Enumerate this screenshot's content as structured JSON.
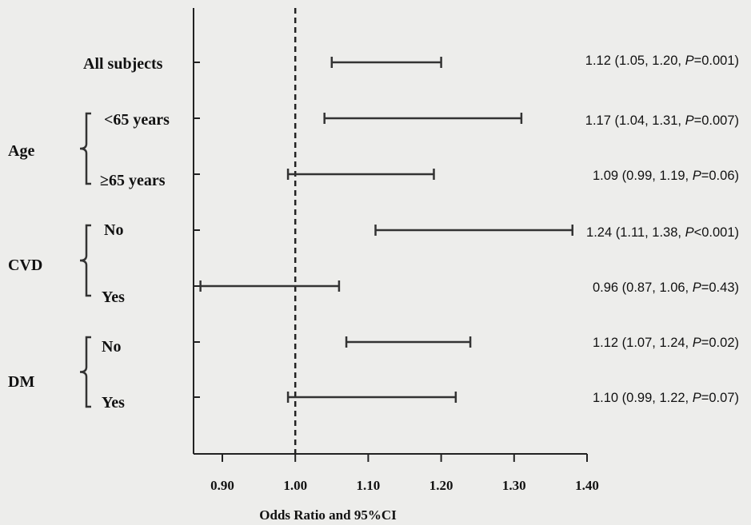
{
  "chart_data": {
    "type": "forest",
    "xlabel": "Odds Ratio and 95%CI",
    "xlim": [
      0.9,
      1.4
    ],
    "x_ticks": [
      "0.90",
      "1.00",
      "1.10",
      "1.20",
      "1.30",
      "1.40"
    ],
    "reference_line": 1.0,
    "rows": [
      {
        "label": "All subjects",
        "or": 1.12,
        "low": 1.05,
        "high": 1.2,
        "p_op": "=",
        "p": "0.001",
        "text_prefix": "1.12 (1.05, 1.20, ",
        "text_p": "P",
        "text_suffix": "=0.001)"
      },
      {
        "label": "<65 years",
        "or": 1.17,
        "low": 1.04,
        "high": 1.31,
        "p_op": "=",
        "p": "0.007",
        "text_prefix": "1.17 (1.04, 1.31, ",
        "text_p": "P",
        "text_suffix": "=0.007)"
      },
      {
        "label": "≥65 years",
        "or": 1.09,
        "low": 0.99,
        "high": 1.19,
        "p_op": "=",
        "p": "0.06",
        "text_prefix": "1.09 (0.99, 1.19, ",
        "text_p": "P",
        "text_suffix": "=0.06)"
      },
      {
        "label": "No",
        "or": 1.24,
        "low": 1.11,
        "high": 1.38,
        "p_op": "<",
        "p": "0.001",
        "text_prefix": "1.24 (1.11, 1.38, ",
        "text_p": "P",
        "text_suffix": "<0.001)"
      },
      {
        "label": "Yes",
        "or": 0.96,
        "low": 0.87,
        "high": 1.06,
        "p_op": "=",
        "p": "0.43",
        "text_prefix": "0.96 (0.87, 1.06, ",
        "text_p": "P",
        "text_suffix": "=0.43)"
      },
      {
        "label": "No",
        "or": 1.12,
        "low": 1.07,
        "high": 1.24,
        "p_op": "=",
        "p": "0.02",
        "text_prefix": "1.12 (1.07, 1.24, ",
        "text_p": "P",
        "text_suffix": "=0.02)"
      },
      {
        "label": "Yes",
        "or": 1.1,
        "low": 0.99,
        "high": 1.22,
        "p_op": "=",
        "p": "0.07",
        "text_prefix": "1.10 (0.99, 1.22, ",
        "text_p": "P",
        "text_suffix": "=0.07)"
      }
    ],
    "groups": [
      {
        "label": "Age",
        "rows": [
          1,
          2
        ]
      },
      {
        "label": "CVD",
        "rows": [
          3,
          4
        ]
      },
      {
        "label": "DM",
        "rows": [
          5,
          6
        ]
      }
    ]
  }
}
